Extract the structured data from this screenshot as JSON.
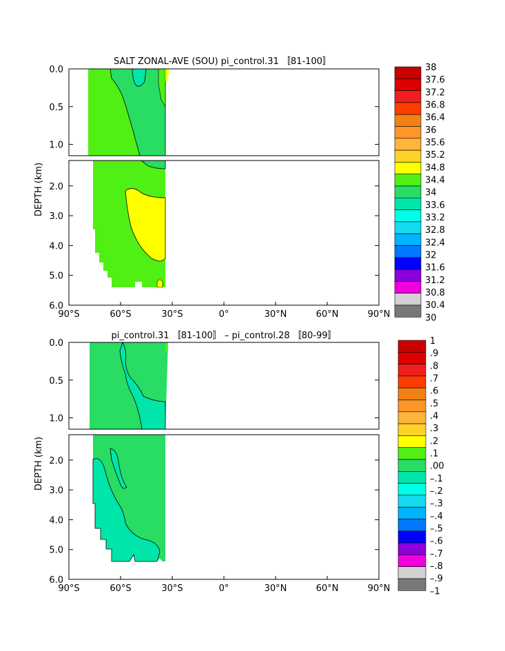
{
  "chart_data": [
    {
      "type": "heatmap",
      "title": "SALT ZONAL-AVE (SOU) pi_control.31 〚81-100〛",
      "ylabel": "DEPTH (km)",
      "x_tick_labels": [
        "90°S",
        "60°S",
        "30°S",
        "0°",
        "30°N",
        "60°N",
        "90°N"
      ],
      "x_ticks": [
        -90,
        -60,
        -30,
        0,
        30,
        60,
        90
      ],
      "xlim": [
        -90,
        90
      ],
      "upper_ylim": [
        0.0,
        1.15
      ],
      "lower_ylim": [
        1.15,
        6.0
      ],
      "upper_y_ticks": [
        0.0,
        0.5,
        1.0
      ],
      "upper_y_tick_labels": [
        "0.0",
        "0.5",
        "1.0"
      ],
      "lower_y_ticks": [
        2.0,
        3.0,
        4.0,
        5.0,
        6.0
      ],
      "lower_y_tick_labels": [
        "2.0",
        "3.0",
        "4.0",
        "5.0",
        "6.0"
      ],
      "colorbar_labels": [
        "38",
        "37.6",
        "37.2",
        "36.8",
        "36.4",
        "36",
        "35.6",
        "35.2",
        "34.8",
        "34.4",
        "34",
        "33.6",
        "33.2",
        "32.8",
        "32.4",
        "32",
        "31.6",
        "31.2",
        "30.8",
        "30.4",
        "30"
      ],
      "colorbar_colors": [
        "#c80000",
        "#dc0000",
        "#f01e1e",
        "#ff3c00",
        "#f08214",
        "#ff9628",
        "#ffb43c",
        "#ffd228",
        "#ffff00",
        "#50f014",
        "#28dc64",
        "#00e6aa",
        "#00ffe6",
        "#14dcf0",
        "#00b4ff",
        "#0078ff",
        "#0000ff",
        "#8c00dc",
        "#f000dc",
        "#d2d2d2",
        "#787878"
      ],
      "regions": [
        {
          "label": "34.4-34.8",
          "color": "#50f014",
          "where": "most of the water column, 75°S to 35°S"
        },
        {
          "label": "34.0-34.4",
          "color": "#28dc64",
          "where": "surface band and mid-depth north of 55°S"
        },
        {
          "label": "33.6-34.0",
          "color": "#00e6aa",
          "where": "small near-surface patch near 47°S"
        },
        {
          "label": "34.8-35.2",
          "color": "#ffff00",
          "where": "deep core 2.3-4.3 km, 55°S to 35°S; surface strip at 35°S"
        }
      ]
    },
    {
      "type": "heatmap",
      "title": "pi_control.31 〚81-100〛 – pi_control.28 〚80-99〛",
      "ylabel": "DEPTH (km)",
      "x_tick_labels": [
        "90°S",
        "60°S",
        "30°S",
        "0°",
        "30°N",
        "60°N",
        "90°N"
      ],
      "x_ticks": [
        -90,
        -60,
        -30,
        0,
        30,
        60,
        90
      ],
      "xlim": [
        -90,
        90
      ],
      "upper_ylim": [
        0.0,
        1.15
      ],
      "lower_ylim": [
        1.15,
        6.0
      ],
      "upper_y_ticks": [
        0.0,
        0.5,
        1.0
      ],
      "upper_y_tick_labels": [
        "0.0",
        "0.5",
        "1.0"
      ],
      "lower_y_ticks": [
        2.0,
        3.0,
        4.0,
        5.0,
        6.0
      ],
      "lower_y_tick_labels": [
        "2.0",
        "3.0",
        "4.0",
        "5.0",
        "6.0"
      ],
      "colorbar_labels": [
        "1",
        ".9",
        ".8",
        ".7",
        ".6",
        ".5",
        ".4",
        ".3",
        ".2",
        ".1",
        ".00",
        "–.1",
        "–.2",
        "–.3",
        "–.4",
        "–.5",
        "–.6",
        "–.7",
        "–.8",
        "–.9",
        "–1"
      ],
      "colorbar_colors": [
        "#c80000",
        "#dc0000",
        "#f01e1e",
        "#ff3c00",
        "#f08214",
        "#ff9628",
        "#ffb43c",
        "#ffd228",
        "#ffff00",
        "#50f014",
        "#28dc64",
        "#00e6aa",
        "#00ffe6",
        "#14dcf0",
        "#00b4ff",
        "#0078ff",
        "#0000ff",
        "#8c00dc",
        "#f000dc",
        "#d2d2d2",
        "#787878"
      ],
      "regions": [
        {
          "label": ".00-.1",
          "color": "#28dc64",
          "where": "most of the section, 75°S to 35°S"
        },
        {
          "label": "-.1-.00",
          "color": "#00e6aa",
          "where": "upper 1 km tongue 55°S-35°S; deep 2-5.3 km, 75°S-45°S"
        },
        {
          "label": ".1-.2",
          "color": "#50f014",
          "where": "thin surface strip near 35°S"
        }
      ]
    }
  ]
}
